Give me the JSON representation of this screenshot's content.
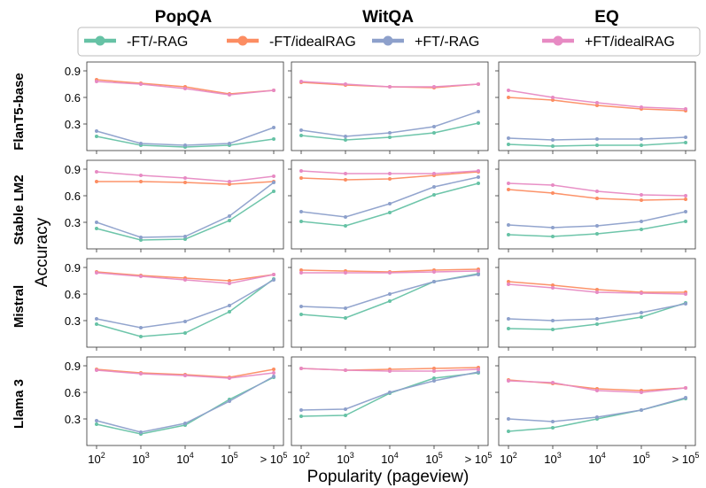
{
  "chart_data": {
    "type": "line",
    "xlabel": "Popularity (pageview)",
    "ylabel": "Accuracy",
    "x_ticks": [
      "10^2",
      "10^3",
      "10^4",
      "10^5",
      "> 10^5"
    ],
    "y_ticks": [
      "0.3",
      "0.6",
      "0.9"
    ],
    "ylim": [
      0,
      1.0
    ],
    "columns": [
      "PopQA",
      "WitQA",
      "EQ"
    ],
    "rows": [
      "FlanT5-base",
      "Stable LM2",
      "Mistral",
      "Llama 3"
    ],
    "legend": [
      {
        "name": "-FT/-RAG",
        "color": "#66c2a5"
      },
      {
        "name": "-FT/idealRAG",
        "color": "#fc8d62"
      },
      {
        "name": "+FT/-RAG",
        "color": "#8da0cb"
      },
      {
        "name": "+FT/idealRAG",
        "color": "#e78ac3"
      }
    ],
    "panels": [
      [
        {
          "model": "FlanT5-base",
          "dataset": "PopQA",
          "series": {
            "-FT/-RAG": [
              0.16,
              0.06,
              0.04,
              0.06,
              0.13
            ],
            "-FT/idealRAG": [
              0.8,
              0.76,
              0.72,
              0.64,
              0.68
            ],
            "+FT/-RAG": [
              0.22,
              0.08,
              0.06,
              0.08,
              0.26
            ],
            "+FT/idealRAG": [
              0.78,
              0.75,
              0.7,
              0.63,
              0.68
            ]
          }
        },
        {
          "model": "FlanT5-base",
          "dataset": "WitQA",
          "series": {
            "-FT/-RAG": [
              0.17,
              0.12,
              0.15,
              0.2,
              0.31
            ],
            "-FT/idealRAG": [
              0.77,
              0.74,
              0.72,
              0.71,
              0.75
            ],
            "+FT/-RAG": [
              0.23,
              0.16,
              0.2,
              0.27,
              0.44
            ],
            "+FT/idealRAG": [
              0.78,
              0.75,
              0.72,
              0.72,
              0.75
            ]
          }
        },
        {
          "model": "FlanT5-base",
          "dataset": "EQ",
          "series": {
            "-FT/-RAG": [
              0.07,
              0.05,
              0.06,
              0.06,
              0.09
            ],
            "-FT/idealRAG": [
              0.6,
              0.57,
              0.51,
              0.47,
              0.45
            ],
            "+FT/-RAG": [
              0.14,
              0.12,
              0.13,
              0.13,
              0.15
            ],
            "+FT/idealRAG": [
              0.68,
              0.6,
              0.54,
              0.49,
              0.47
            ]
          }
        }
      ],
      [
        {
          "model": "Stable LM2",
          "dataset": "PopQA",
          "series": {
            "-FT/-RAG": [
              0.23,
              0.1,
              0.11,
              0.32,
              0.65
            ],
            "-FT/idealRAG": [
              0.76,
              0.76,
              0.75,
              0.73,
              0.76
            ],
            "+FT/-RAG": [
              0.3,
              0.13,
              0.14,
              0.37,
              0.75
            ],
            "+FT/idealRAG": [
              0.87,
              0.83,
              0.8,
              0.76,
              0.82
            ]
          }
        },
        {
          "model": "Stable LM2",
          "dataset": "WitQA",
          "series": {
            "-FT/-RAG": [
              0.31,
              0.26,
              0.41,
              0.61,
              0.74
            ],
            "-FT/idealRAG": [
              0.8,
              0.78,
              0.79,
              0.83,
              0.87
            ],
            "+FT/-RAG": [
              0.42,
              0.36,
              0.51,
              0.7,
              0.81
            ],
            "+FT/idealRAG": [
              0.88,
              0.85,
              0.85,
              0.85,
              0.88
            ]
          }
        },
        {
          "model": "Stable LM2",
          "dataset": "EQ",
          "series": {
            "-FT/-RAG": [
              0.16,
              0.14,
              0.17,
              0.22,
              0.31
            ],
            "-FT/idealRAG": [
              0.67,
              0.63,
              0.57,
              0.55,
              0.56
            ],
            "+FT/-RAG": [
              0.27,
              0.24,
              0.26,
              0.31,
              0.42
            ],
            "+FT/idealRAG": [
              0.74,
              0.72,
              0.65,
              0.61,
              0.6
            ]
          }
        }
      ],
      [
        {
          "model": "Mistral",
          "dataset": "PopQA",
          "series": {
            "-FT/-RAG": [
              0.26,
              0.12,
              0.16,
              0.4,
              0.77
            ],
            "-FT/idealRAG": [
              0.85,
              0.81,
              0.78,
              0.75,
              0.82
            ],
            "+FT/-RAG": [
              0.32,
              0.22,
              0.29,
              0.47,
              0.76
            ],
            "+FT/idealRAG": [
              0.84,
              0.8,
              0.76,
              0.72,
              0.82
            ]
          }
        },
        {
          "model": "Mistral",
          "dataset": "WitQA",
          "series": {
            "-FT/-RAG": [
              0.37,
              0.33,
              0.52,
              0.74,
              0.83
            ],
            "-FT/idealRAG": [
              0.87,
              0.86,
              0.85,
              0.87,
              0.88
            ],
            "+FT/-RAG": [
              0.46,
              0.44,
              0.6,
              0.74,
              0.82
            ],
            "+FT/idealRAG": [
              0.84,
              0.84,
              0.84,
              0.85,
              0.86
            ]
          }
        },
        {
          "model": "Mistral",
          "dataset": "EQ",
          "series": {
            "-FT/-RAG": [
              0.21,
              0.2,
              0.26,
              0.34,
              0.5
            ],
            "-FT/idealRAG": [
              0.74,
              0.7,
              0.65,
              0.62,
              0.62
            ],
            "+FT/-RAG": [
              0.32,
              0.3,
              0.32,
              0.39,
              0.49
            ],
            "+FT/idealRAG": [
              0.71,
              0.67,
              0.62,
              0.61,
              0.6
            ]
          }
        }
      ],
      [
        {
          "model": "Llama 3",
          "dataset": "PopQA",
          "series": {
            "-FT/-RAG": [
              0.24,
              0.13,
              0.23,
              0.52,
              0.77
            ],
            "-FT/idealRAG": [
              0.86,
              0.82,
              0.8,
              0.77,
              0.86
            ],
            "+FT/-RAG": [
              0.28,
              0.15,
              0.25,
              0.5,
              0.78
            ],
            "+FT/idealRAG": [
              0.85,
              0.81,
              0.79,
              0.76,
              0.82
            ]
          }
        },
        {
          "model": "Llama 3",
          "dataset": "WitQA",
          "series": {
            "-FT/-RAG": [
              0.33,
              0.34,
              0.59,
              0.76,
              0.82
            ],
            "-FT/idealRAG": [
              0.87,
              0.85,
              0.86,
              0.87,
              0.88
            ],
            "+FT/-RAG": [
              0.4,
              0.41,
              0.6,
              0.73,
              0.83
            ],
            "+FT/idealRAG": [
              0.87,
              0.85,
              0.84,
              0.84,
              0.86
            ]
          }
        },
        {
          "model": "Llama 3",
          "dataset": "EQ",
          "series": {
            "-FT/-RAG": [
              0.16,
              0.2,
              0.3,
              0.4,
              0.53
            ],
            "-FT/idealRAG": [
              0.74,
              0.7,
              0.64,
              0.62,
              0.65
            ],
            "+FT/-RAG": [
              0.3,
              0.27,
              0.32,
              0.4,
              0.54
            ],
            "+FT/idealRAG": [
              0.73,
              0.71,
              0.62,
              0.6,
              0.65
            ]
          }
        }
      ]
    ]
  }
}
